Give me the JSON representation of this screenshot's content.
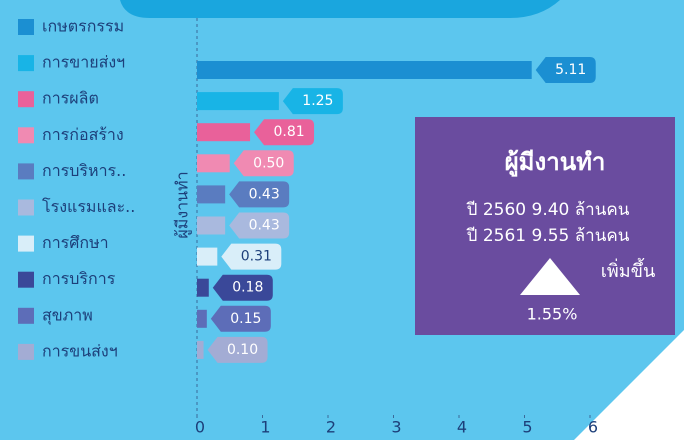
{
  "chart_data": {
    "type": "bar",
    "orientation": "horizontal",
    "y_label": "ผู้มีงานทำ",
    "categories": [
      "เกษตรกรรม",
      "การขายส่งฯ",
      "การผลิต",
      "การก่อสร้าง",
      "การบริหาร..",
      "โรงแรมและ..",
      "การศึกษา",
      "การบริการ",
      "สุขภาพ",
      "การขนส่งฯ"
    ],
    "values": [
      5.11,
      1.25,
      0.81,
      0.5,
      0.43,
      0.43,
      0.31,
      0.18,
      0.15,
      0.1
    ],
    "value_labels": [
      "5.11",
      "1.25",
      "0.81",
      "0.50",
      "0.43",
      "0.43",
      "0.31",
      "0.18",
      "0.15",
      "0.10"
    ],
    "colors": [
      "#1b8fd2",
      "#18b4e6",
      "#e9619a",
      "#f08ab2",
      "#5a7cc0",
      "#a9b9de",
      "#d9eef9",
      "#3a4899",
      "#5d6db8",
      "#a3acd4"
    ],
    "xlim": [
      0,
      6.5
    ],
    "xticks": [
      0,
      1,
      2,
      3,
      4,
      5,
      6
    ],
    "annotation": {
      "title": "ผู้มีงานทำ",
      "line1": "ปี 2560  9.40  ล้านคน",
      "line2": "ปี 2561  9.55  ล้านคน",
      "change_label": "เพิ่มขึ้น",
      "change": "1.55%"
    }
  }
}
